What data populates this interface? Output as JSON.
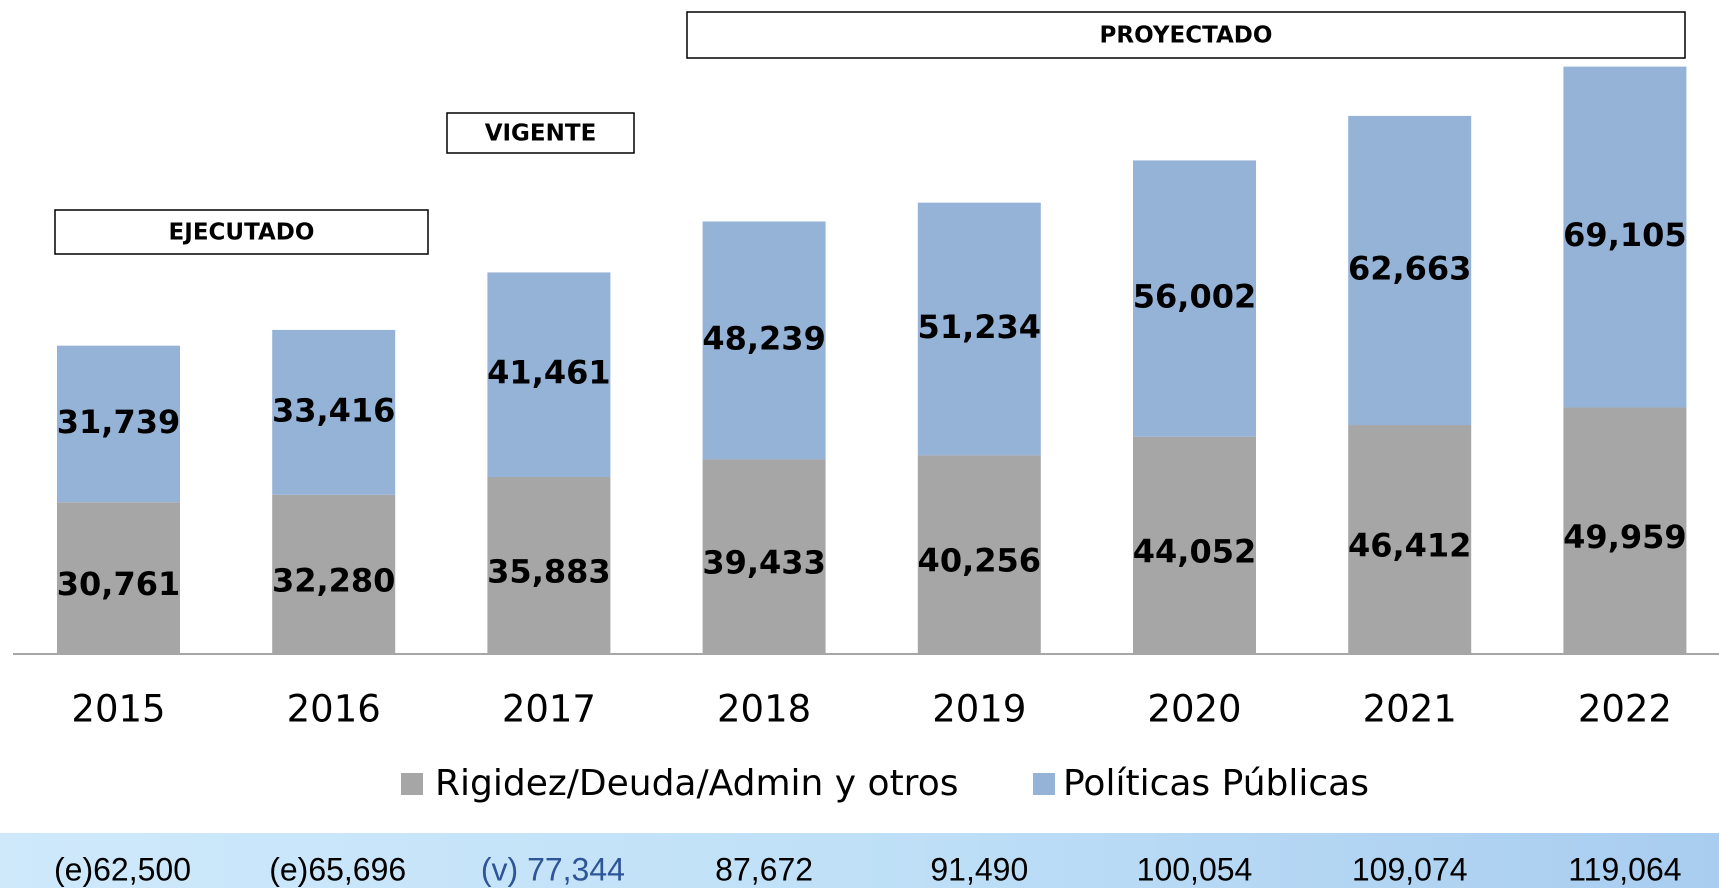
{
  "chart_data": {
    "type": "stacked_bar",
    "categories": [
      "2015",
      "2016",
      "2017",
      "2018",
      "2019",
      "2020",
      "2021",
      "2022"
    ],
    "series": [
      {
        "name": "Rigidez/Deuda/Admin y otros",
        "color": "#a6a6a6",
        "values": [
          30761,
          32280,
          35883,
          39433,
          40256,
          44052,
          46412,
          49959
        ],
        "value_labels": [
          "30,761",
          "32,280",
          "35,883",
          "39,433",
          "40,256",
          "44,052",
          "46,412",
          "49,959"
        ]
      },
      {
        "name": "Políticas Públicas",
        "color": "#95b3d7",
        "values": [
          31739,
          33416,
          41461,
          48239,
          51234,
          56002,
          62663,
          69105
        ],
        "value_labels": [
          "31,739",
          "33,416",
          "41,461",
          "48,239",
          "51,234",
          "56,002",
          "62,663",
          "69,105"
        ]
      }
    ],
    "totals": [
      62500,
      65696,
      77344,
      87672,
      91490,
      100054,
      109074,
      119064
    ],
    "total_labels": [
      "(e)62,500",
      "(e)65,696",
      "(v) 77,344",
      "87,672",
      "91,490",
      "100,054",
      "109,074",
      "119,064"
    ],
    "annotations": [
      {
        "text": "EJECUTADO"
      },
      {
        "text": "VIGENTE"
      },
      {
        "text": "PROYECTADO"
      }
    ],
    "ylim": [
      0,
      120000
    ]
  }
}
